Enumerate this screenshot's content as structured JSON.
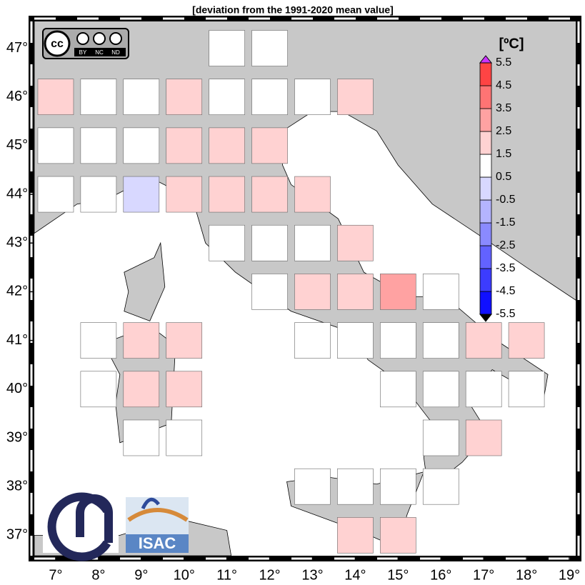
{
  "map": {
    "title": "[deviation from the 1991-2020 mean value]",
    "xlim": [
      6.5,
      19.15
    ],
    "ylim": [
      36.58,
      47.55
    ],
    "xticks": [
      {
        "value": 7,
        "label": "7°"
      },
      {
        "value": 8,
        "label": "8°"
      },
      {
        "value": 9,
        "label": "9°"
      },
      {
        "value": 10,
        "label": "10°"
      },
      {
        "value": 11,
        "label": "11°"
      },
      {
        "value": 12,
        "label": "12°"
      },
      {
        "value": 13,
        "label": "13°"
      },
      {
        "value": 14,
        "label": "14°"
      },
      {
        "value": 15,
        "label": "15°"
      },
      {
        "value": 16,
        "label": "16°"
      },
      {
        "value": 17,
        "label": "17°"
      },
      {
        "value": 18,
        "label": "18°"
      },
      {
        "value": 19,
        "label": "19°"
      }
    ],
    "yticks": [
      {
        "value": 37,
        "label": "37°"
      },
      {
        "value": 38,
        "label": "38°"
      },
      {
        "value": 39,
        "label": "39°"
      },
      {
        "value": 40,
        "label": "40°"
      },
      {
        "value": 41,
        "label": "41°"
      },
      {
        "value": 42,
        "label": "42°"
      },
      {
        "value": 43,
        "label": "43°"
      },
      {
        "value": 44,
        "label": "44°"
      },
      {
        "value": 45,
        "label": "45°"
      },
      {
        "value": 46,
        "label": "46°"
      },
      {
        "value": 47,
        "label": "47°"
      }
    ],
    "colorbar": {
      "label": "[ºC]",
      "levels": [
        -5.5,
        -4.5,
        -3.5,
        -2.5,
        -1.5,
        -0.5,
        0.5,
        1.5,
        2.5,
        3.5,
        4.5,
        5.5
      ],
      "colors": [
        "#1010ff",
        "#3c3cff",
        "#6262ff",
        "#8a8aff",
        "#b4b4ff",
        "#d8d8ff",
        "#ffffff",
        "#ffd2d2",
        "#ffa2a2",
        "#ff7474",
        "#ff4444",
        "#ff1414"
      ]
    },
    "cells": [
      {
        "lon": 11,
        "lat": 47,
        "value": 1
      },
      {
        "lon": 12,
        "lat": 47,
        "value": 1
      },
      {
        "lon": 7,
        "lat": 46,
        "value": 2
      },
      {
        "lon": 8,
        "lat": 46,
        "value": 1
      },
      {
        "lon": 9,
        "lat": 46,
        "value": 1
      },
      {
        "lon": 10,
        "lat": 46,
        "value": 2
      },
      {
        "lon": 11,
        "lat": 46,
        "value": 1
      },
      {
        "lon": 12,
        "lat": 46,
        "value": 1
      },
      {
        "lon": 13,
        "lat": 46,
        "value": 1
      },
      {
        "lon": 14,
        "lat": 46,
        "value": 2
      },
      {
        "lon": 7,
        "lat": 45,
        "value": 1
      },
      {
        "lon": 8,
        "lat": 45,
        "value": 1
      },
      {
        "lon": 9,
        "lat": 45,
        "value": 1
      },
      {
        "lon": 10,
        "lat": 45,
        "value": 2
      },
      {
        "lon": 11,
        "lat": 45,
        "value": 2
      },
      {
        "lon": 12,
        "lat": 45,
        "value": 2
      },
      {
        "lon": 7,
        "lat": 44,
        "value": 1
      },
      {
        "lon": 8,
        "lat": 44,
        "value": 1
      },
      {
        "lon": 9,
        "lat": 44,
        "value": 0
      },
      {
        "lon": 10,
        "lat": 44,
        "value": 2
      },
      {
        "lon": 11,
        "lat": 44,
        "value": 2
      },
      {
        "lon": 12,
        "lat": 44,
        "value": 2
      },
      {
        "lon": 13,
        "lat": 44,
        "value": 2
      },
      {
        "lon": 11,
        "lat": 43,
        "value": 1
      },
      {
        "lon": 12,
        "lat": 43,
        "value": 1
      },
      {
        "lon": 13,
        "lat": 43,
        "value": 1
      },
      {
        "lon": 14,
        "lat": 43,
        "value": 2
      },
      {
        "lon": 12,
        "lat": 42,
        "value": 1
      },
      {
        "lon": 13,
        "lat": 42,
        "value": 2
      },
      {
        "lon": 14,
        "lat": 42,
        "value": 2
      },
      {
        "lon": 15,
        "lat": 42,
        "value": 3
      },
      {
        "lon": 16,
        "lat": 42,
        "value": 1
      },
      {
        "lon": 8,
        "lat": 41,
        "value": 1
      },
      {
        "lon": 9,
        "lat": 41,
        "value": 2
      },
      {
        "lon": 10,
        "lat": 41,
        "value": 2
      },
      {
        "lon": 13,
        "lat": 41,
        "value": 1
      },
      {
        "lon": 14,
        "lat": 41,
        "value": 1
      },
      {
        "lon": 15,
        "lat": 41,
        "value": 1
      },
      {
        "lon": 16,
        "lat": 41,
        "value": 1
      },
      {
        "lon": 17,
        "lat": 41,
        "value": 2
      },
      {
        "lon": 18,
        "lat": 41,
        "value": 2
      },
      {
        "lon": 8,
        "lat": 40,
        "value": 1
      },
      {
        "lon": 9,
        "lat": 40,
        "value": 2
      },
      {
        "lon": 10,
        "lat": 40,
        "value": 2
      },
      {
        "lon": 15,
        "lat": 40,
        "value": 1
      },
      {
        "lon": 16,
        "lat": 40,
        "value": 1
      },
      {
        "lon": 17,
        "lat": 40,
        "value": 1
      },
      {
        "lon": 18,
        "lat": 40,
        "value": 1
      },
      {
        "lon": 9,
        "lat": 39,
        "value": 1
      },
      {
        "lon": 10,
        "lat": 39,
        "value": 1
      },
      {
        "lon": 16,
        "lat": 39,
        "value": 1
      },
      {
        "lon": 17,
        "lat": 39,
        "value": 2
      },
      {
        "lon": 13,
        "lat": 38,
        "value": 1
      },
      {
        "lon": 14,
        "lat": 38,
        "value": 1
      },
      {
        "lon": 15,
        "lat": 38,
        "value": 1
      },
      {
        "lon": 16,
        "lat": 38,
        "value": 1
      },
      {
        "lon": 14,
        "lat": 37,
        "value": 2
      },
      {
        "lon": 15,
        "lat": 37,
        "value": 2
      }
    ]
  },
  "logos": {
    "cc": "cc",
    "by": "BY",
    "nc": "NC",
    "nd": "ND",
    "isac": "ISAC"
  }
}
